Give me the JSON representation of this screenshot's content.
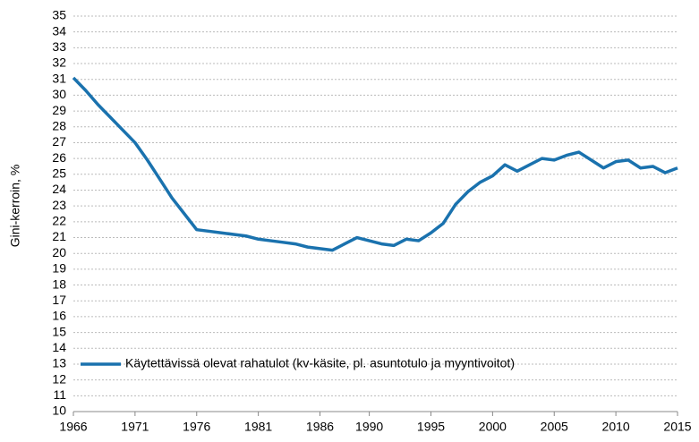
{
  "chart_data": {
    "type": "line",
    "y_label": "Gini-kerroin, %",
    "x": [
      1966,
      1967,
      1968,
      1969,
      1970,
      1971,
      1972,
      1973,
      1974,
      1975,
      1976,
      1977,
      1978,
      1979,
      1980,
      1981,
      1982,
      1983,
      1984,
      1985,
      1986,
      1987,
      1988,
      1989,
      1990,
      1991,
      1992,
      1993,
      1994,
      1995,
      1996,
      1997,
      1998,
      1999,
      2000,
      2001,
      2002,
      2003,
      2004,
      2005,
      2006,
      2007,
      2008,
      2009,
      2010,
      2011,
      2012,
      2013,
      2014,
      2015
    ],
    "series": [
      {
        "name": "Käytettävissä olevat rahatulot (kv-käsite, pl. asuntotulo ja myyntivoitot)",
        "color": "#1a72ae",
        "values": [
          31.1,
          30.3,
          29.4,
          28.6,
          27.8,
          27.0,
          25.9,
          24.7,
          23.5,
          22.5,
          21.5,
          21.4,
          21.3,
          21.2,
          21.1,
          20.9,
          20.8,
          20.7,
          20.6,
          20.4,
          20.3,
          20.2,
          20.6,
          21.0,
          20.8,
          20.6,
          20.5,
          20.9,
          20.8,
          21.3,
          21.9,
          23.1,
          23.9,
          24.5,
          24.9,
          25.6,
          25.2,
          25.6,
          26.0,
          25.9,
          26.2,
          26.4,
          25.9,
          25.4,
          25.8,
          25.9,
          25.4,
          25.5,
          25.1,
          25.4
        ]
      }
    ],
    "xlim": [
      1966,
      2015
    ],
    "xticks": [
      1966,
      1971,
      1976,
      1981,
      1986,
      1990,
      1995,
      2000,
      2005,
      2010,
      2015
    ],
    "ylim": [
      10,
      35
    ],
    "yticks": [
      10,
      11,
      12,
      13,
      14,
      15,
      16,
      17,
      18,
      19,
      20,
      21,
      22,
      23,
      24,
      25,
      26,
      27,
      28,
      29,
      30,
      31,
      32,
      33,
      34,
      35
    ],
    "grid": true,
    "legend": "lower left"
  }
}
